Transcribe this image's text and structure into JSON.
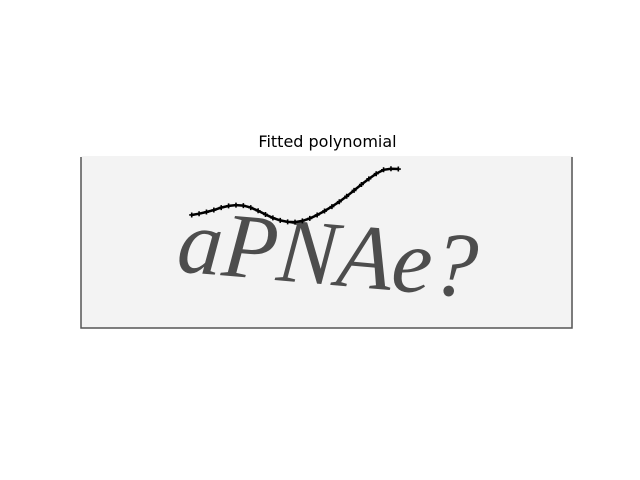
{
  "title": "Fitted polynomial",
  "captcha_text": "aPNAe?",
  "colors": {
    "image_background": "#f3f3f3",
    "glyph_color": "#4d4d4d",
    "curve_color": "#000000",
    "border_color": "#555555"
  },
  "chart_data": {
    "type": "line",
    "title": "Fitted polynomial",
    "axes_visible": false,
    "xlim": [
      0,
      200
    ],
    "ylim": [
      70,
      0
    ],
    "series": [
      {
        "x": [
          45,
          48,
          51,
          54,
          57,
          60,
          63,
          66,
          69,
          72,
          75,
          78,
          81,
          84,
          87,
          90,
          93,
          96,
          99,
          102,
          105,
          108,
          111,
          114,
          117,
          120,
          123,
          126,
          129
        ],
        "y": [
          24.0,
          23.5,
          22.8,
          22.0,
          21.0,
          20.3,
          20.0,
          20.2,
          21.0,
          22.3,
          23.8,
          25.2,
          26.2,
          26.8,
          26.9,
          26.4,
          25.4,
          24.0,
          22.4,
          20.6,
          18.6,
          16.4,
          14.0,
          11.6,
          9.3,
          7.2,
          5.6,
          5.2,
          5.3
        ]
      }
    ]
  }
}
